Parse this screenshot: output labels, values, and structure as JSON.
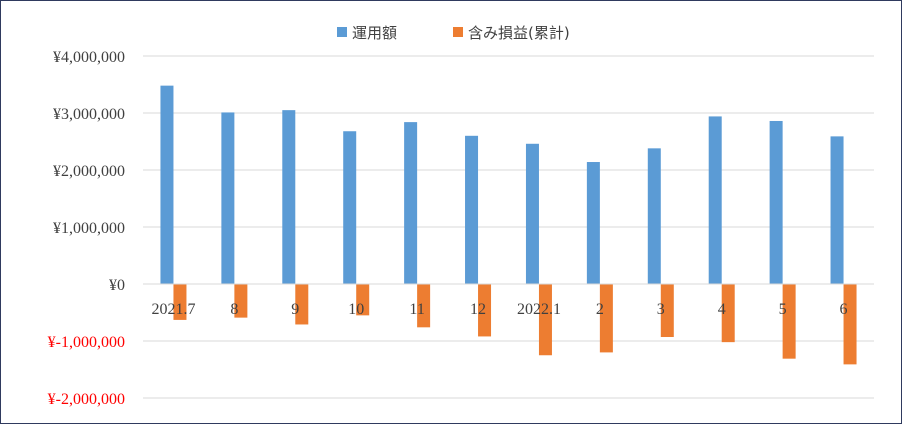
{
  "chart_data": {
    "type": "bar",
    "categories": [
      "2021.7",
      "8",
      "9",
      "10",
      "11",
      "12",
      "2022.1",
      "2",
      "3",
      "4",
      "5",
      "6"
    ],
    "series": [
      {
        "name": "運用額",
        "color": "#5b9bd5",
        "values": [
          3480000,
          3010000,
          3050000,
          2680000,
          2840000,
          2600000,
          2460000,
          2140000,
          2380000,
          2940000,
          2860000,
          2590000
        ]
      },
      {
        "name": "含み損益(累計)",
        "color": "#ed7d31",
        "values": [
          -630000,
          -590000,
          -710000,
          -550000,
          -760000,
          -920000,
          -1250000,
          -1200000,
          -930000,
          -1020000,
          -1310000,
          -1410000
        ]
      }
    ],
    "ylim": [
      -2000000,
      4000000
    ],
    "yticks": [
      {
        "value": 4000000,
        "label": "¥4,000,000",
        "color": "#404040"
      },
      {
        "value": 3000000,
        "label": "¥3,000,000",
        "color": "#404040"
      },
      {
        "value": 2000000,
        "label": "¥2,000,000",
        "color": "#404040"
      },
      {
        "value": 1000000,
        "label": "¥1,000,000",
        "color": "#404040"
      },
      {
        "value": 0,
        "label": "¥0",
        "color": "#404040"
      },
      {
        "value": -1000000,
        "label": "¥-1,000,000",
        "color": "#ff0000"
      },
      {
        "value": -2000000,
        "label": "¥-2,000,000",
        "color": "#ff0000"
      }
    ],
    "grid": true,
    "legend_position": "top-center"
  }
}
